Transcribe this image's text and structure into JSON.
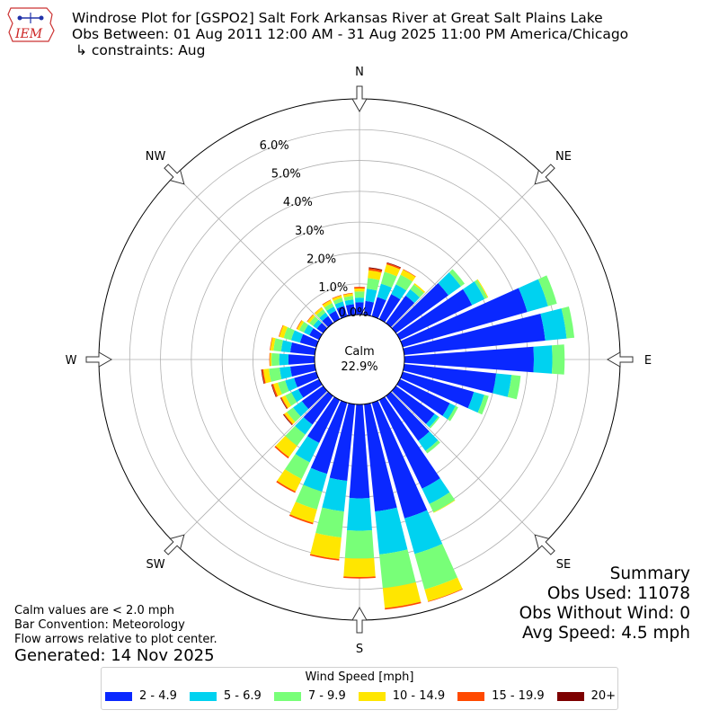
{
  "header": {
    "logo_text": "IEM",
    "title_line1": "Windrose Plot for [GSPO2] Salt Fork Arkansas River at Great Salt Plains Lake",
    "title_line2": "Obs Between: 01 Aug 2011 12:00 AM - 31 Aug 2025 11:00 PM America/Chicago",
    "title_line3": "↳ constraints: Aug"
  },
  "chart_data": {
    "type": "windrose",
    "convention": "meteorology",
    "radial_unit": "%",
    "radial_ticks": [
      "1.0%",
      "2.0%",
      "3.0%",
      "4.0%",
      "5.0%",
      "6.0%"
    ],
    "radial_max": 7.0,
    "calm_label": "Calm",
    "calm_value": "22.9%",
    "direction_labels": [
      "N",
      "NE",
      "E",
      "SE",
      "S",
      "SW",
      "W",
      "NW"
    ],
    "speed_bins": [
      "2 - 4.9",
      "5 - 6.9",
      "7 - 9.9",
      "10 - 14.9",
      "15 - 19.9",
      "20+"
    ],
    "colors": [
      "#0a28ff",
      "#00d2f0",
      "#78ff78",
      "#ffe600",
      "#ff4a00",
      "#7d0000"
    ],
    "directions_deg": [
      0,
      10,
      20,
      30,
      40,
      50,
      60,
      70,
      80,
      90,
      100,
      110,
      120,
      130,
      140,
      150,
      160,
      170,
      180,
      190,
      200,
      210,
      220,
      230,
      240,
      250,
      260,
      270,
      280,
      290,
      300,
      310,
      320,
      330,
      340,
      350
    ],
    "cumulative": [
      [
        0.4,
        0.55,
        0.75,
        0.85,
        0.9,
        0.9
      ],
      [
        0.45,
        0.85,
        1.2,
        1.45,
        1.52,
        1.55
      ],
      [
        0.65,
        1.1,
        1.5,
        1.75,
        1.8,
        1.82
      ],
      [
        0.9,
        1.25,
        1.6,
        1.78,
        1.8,
        1.8
      ],
      [
        1.1,
        1.35,
        1.55,
        1.6,
        1.6,
        1.6
      ],
      [
        2.1,
        2.6,
        2.75,
        2.75,
        2.75,
        2.75
      ],
      [
        2.6,
        3.05,
        3.15,
        3.18,
        3.18,
        3.18
      ],
      [
        4.2,
        4.9,
        5.2,
        5.2,
        5.2,
        5.2
      ],
      [
        4.6,
        5.3,
        5.55,
        5.55,
        5.55,
        5.55
      ],
      [
        4.2,
        4.8,
        5.2,
        5.2,
        5.2,
        5.2
      ],
      [
        3.0,
        3.5,
        3.8,
        3.8,
        3.8,
        3.8
      ],
      [
        2.4,
        2.75,
        2.9,
        2.9,
        2.9,
        2.9
      ],
      [
        1.8,
        2.0,
        2.1,
        2.1,
        2.1,
        2.1
      ],
      [
        1.55,
        1.7,
        1.75,
        1.75,
        1.75,
        1.75
      ],
      [
        1.8,
        2.2,
        2.3,
        2.3,
        2.3,
        2.3
      ],
      [
        3.2,
        3.75,
        4.05,
        4.07,
        4.07,
        4.07
      ],
      [
        3.9,
        5.1,
        6.3,
        6.7,
        6.72,
        6.72
      ],
      [
        3.5,
        4.9,
        6.0,
        6.65,
        6.7,
        6.7
      ],
      [
        3.05,
        4.1,
        5.0,
        5.6,
        5.65,
        5.65
      ],
      [
        2.5,
        3.5,
        4.35,
        5.05,
        5.1,
        5.1
      ],
      [
        2.4,
        3.0,
        3.6,
        4.05,
        4.1,
        4.1
      ],
      [
        1.55,
        2.25,
        2.85,
        3.3,
        3.35,
        3.35
      ],
      [
        1.15,
        1.55,
        2.0,
        2.45,
        2.5,
        2.5
      ],
      [
        0.85,
        1.2,
        1.45,
        1.55,
        1.58,
        1.6
      ],
      [
        0.75,
        1.0,
        1.22,
        1.35,
        1.38,
        1.4
      ],
      [
        0.75,
        1.05,
        1.3,
        1.45,
        1.5,
        1.52
      ],
      [
        0.8,
        1.15,
        1.5,
        1.68,
        1.73,
        1.75
      ],
      [
        0.85,
        1.15,
        1.4,
        1.45,
        1.47,
        1.47
      ],
      [
        0.8,
        1.1,
        1.35,
        1.45,
        1.47,
        1.47
      ],
      [
        0.55,
        0.85,
        1.1,
        1.25,
        1.27,
        1.27
      ],
      [
        0.35,
        0.55,
        0.72,
        0.8,
        0.82,
        0.82
      ],
      [
        0.25,
        0.4,
        0.55,
        0.63,
        0.65,
        0.65
      ],
      [
        0.28,
        0.42,
        0.55,
        0.63,
        0.64,
        0.64
      ],
      [
        0.3,
        0.45,
        0.58,
        0.68,
        0.7,
        0.7
      ],
      [
        0.35,
        0.5,
        0.62,
        0.7,
        0.72,
        0.72
      ],
      [
        0.35,
        0.5,
        0.62,
        0.7,
        0.72,
        0.72
      ]
    ]
  },
  "notes": {
    "line1": "Calm values are < 2.0 mph",
    "line2": "Bar Convention: Meteorology",
    "line3": "Flow arrows relative to plot center.",
    "generated": "Generated: 14 Nov 2025"
  },
  "summary": {
    "title": "Summary",
    "obs_used": "Obs Used: 11078",
    "obs_without_wind": "Obs Without Wind: 0",
    "avg_speed": "Avg Speed: 4.5 mph"
  },
  "legend": {
    "title": "Wind Speed [mph]",
    "items": [
      {
        "label": "2 - 4.9",
        "color": "#0a28ff"
      },
      {
        "label": "5 - 6.9",
        "color": "#00d2f0"
      },
      {
        "label": "7 - 9.9",
        "color": "#78ff78"
      },
      {
        "label": "10 - 14.9",
        "color": "#ffe600"
      },
      {
        "label": "15 - 19.9",
        "color": "#ff4a00"
      },
      {
        "label": "20+",
        "color": "#7d0000"
      }
    ]
  }
}
